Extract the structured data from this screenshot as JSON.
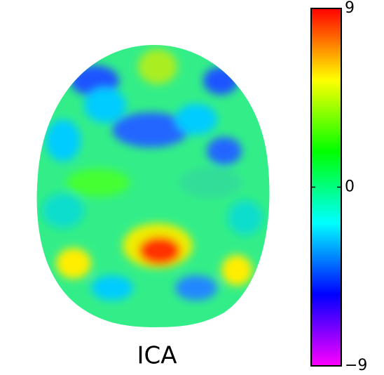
{
  "chart_data": {
    "type": "image",
    "title": "ICA",
    "colorbar": {
      "clim": [
        -9,
        9
      ],
      "ticks": [
        9,
        0,
        {
          "value": -9,
          "label": "−9"
        }
      ],
      "colormap": [
        "#ff00ff",
        "#7f00ff",
        "#0000ff",
        "#0080ff",
        "#00ffff",
        "#00ff80",
        "#00ff00",
        "#80ff00",
        "#ffff00",
        "#ff8000",
        "#ff0000"
      ]
    }
  }
}
